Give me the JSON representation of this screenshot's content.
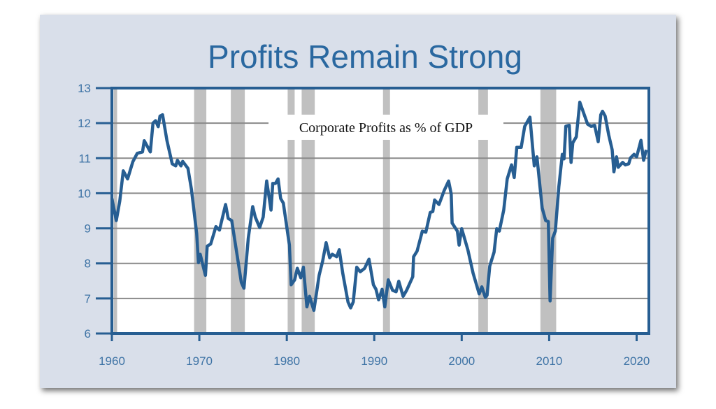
{
  "chart_data": {
    "type": "line",
    "title": "Profits Remain Strong",
    "subtitle": "Corporate Profits as % of GDP",
    "xlabel": "",
    "ylabel": "",
    "xlim": [
      1960,
      2021.4
    ],
    "ylim": [
      6,
      13
    ],
    "grid": true,
    "x_ticks": [
      "1960",
      "1970",
      "1980",
      "1990",
      "2000",
      "2010",
      "2020"
    ],
    "y_ticks": [
      "6",
      "7",
      "8",
      "9",
      "10",
      "11",
      "12",
      "13"
    ],
    "recessions": [
      [
        1960.2,
        1960.6
      ],
      [
        1969.4,
        1970.8
      ],
      [
        1973.6,
        1975.2
      ],
      [
        1980.1,
        1980.9
      ],
      [
        1981.7,
        1983.2
      ],
      [
        1991.0,
        1991.8
      ],
      [
        2001.9,
        2003.0
      ],
      [
        2009.0,
        2010.8
      ]
    ],
    "series": [
      {
        "name": "Corporate Profits as % of GDP",
        "color": "#275e92",
        "points": [
          [
            1960.0,
            9.85
          ],
          [
            1960.5,
            9.22
          ],
          [
            1960.9,
            9.78
          ],
          [
            1961.3,
            10.64
          ],
          [
            1961.8,
            10.41
          ],
          [
            1962.4,
            10.9
          ],
          [
            1962.9,
            11.14
          ],
          [
            1963.5,
            11.18
          ],
          [
            1963.7,
            11.5
          ],
          [
            1964.4,
            11.18
          ],
          [
            1964.7,
            12.0
          ],
          [
            1965.0,
            12.07
          ],
          [
            1965.3,
            11.9
          ],
          [
            1965.5,
            12.2
          ],
          [
            1965.8,
            12.24
          ],
          [
            1966.3,
            11.5
          ],
          [
            1966.9,
            10.84
          ],
          [
            1967.3,
            10.78
          ],
          [
            1967.5,
            10.94
          ],
          [
            1967.9,
            10.78
          ],
          [
            1968.1,
            10.91
          ],
          [
            1968.7,
            10.71
          ],
          [
            1969.1,
            10.11
          ],
          [
            1969.7,
            8.85
          ],
          [
            1969.9,
            8.02
          ],
          [
            1970.1,
            8.26
          ],
          [
            1970.7,
            7.66
          ],
          [
            1970.9,
            8.49
          ],
          [
            1971.3,
            8.55
          ],
          [
            1971.9,
            9.05
          ],
          [
            1972.3,
            8.95
          ],
          [
            1973.0,
            9.68
          ],
          [
            1973.3,
            9.28
          ],
          [
            1973.7,
            9.22
          ],
          [
            1974.3,
            8.26
          ],
          [
            1974.8,
            7.46
          ],
          [
            1975.1,
            7.29
          ],
          [
            1975.6,
            8.72
          ],
          [
            1976.1,
            9.62
          ],
          [
            1976.4,
            9.32
          ],
          [
            1976.9,
            9.02
          ],
          [
            1977.3,
            9.32
          ],
          [
            1977.7,
            10.35
          ],
          [
            1978.2,
            9.52
          ],
          [
            1978.4,
            10.28
          ],
          [
            1978.7,
            10.28
          ],
          [
            1979.0,
            10.41
          ],
          [
            1979.3,
            9.85
          ],
          [
            1979.6,
            9.72
          ],
          [
            1980.3,
            8.52
          ],
          [
            1980.5,
            7.39
          ],
          [
            1980.9,
            7.53
          ],
          [
            1981.2,
            7.86
          ],
          [
            1981.6,
            7.59
          ],
          [
            1981.9,
            7.89
          ],
          [
            1982.3,
            6.76
          ],
          [
            1982.6,
            7.06
          ],
          [
            1983.1,
            6.66
          ],
          [
            1983.7,
            7.66
          ],
          [
            1984.1,
            8.06
          ],
          [
            1984.5,
            8.59
          ],
          [
            1984.9,
            8.16
          ],
          [
            1985.2,
            8.26
          ],
          [
            1985.7,
            8.19
          ],
          [
            1986.0,
            8.39
          ],
          [
            1986.4,
            7.72
          ],
          [
            1987.0,
            6.9
          ],
          [
            1987.3,
            6.73
          ],
          [
            1987.6,
            6.9
          ],
          [
            1988.0,
            7.89
          ],
          [
            1988.4,
            7.76
          ],
          [
            1988.9,
            7.86
          ],
          [
            1989.4,
            8.12
          ],
          [
            1989.9,
            7.39
          ],
          [
            1990.2,
            7.26
          ],
          [
            1990.5,
            6.96
          ],
          [
            1990.9,
            7.26
          ],
          [
            1991.2,
            6.76
          ],
          [
            1991.6,
            7.53
          ],
          [
            1992.1,
            7.23
          ],
          [
            1992.5,
            7.19
          ],
          [
            1992.8,
            7.49
          ],
          [
            1993.3,
            7.06
          ],
          [
            1993.7,
            7.23
          ],
          [
            1994.4,
            7.62
          ],
          [
            1994.5,
            8.19
          ],
          [
            1994.9,
            8.35
          ],
          [
            1995.5,
            8.92
          ],
          [
            1995.9,
            8.89
          ],
          [
            1996.4,
            9.45
          ],
          [
            1996.7,
            9.48
          ],
          [
            1996.9,
            9.81
          ],
          [
            1997.4,
            9.68
          ],
          [
            1998.0,
            10.08
          ],
          [
            1998.5,
            10.35
          ],
          [
            1998.8,
            9.98
          ],
          [
            1998.9,
            9.15
          ],
          [
            1999.5,
            8.92
          ],
          [
            1999.7,
            8.52
          ],
          [
            2000.0,
            8.99
          ],
          [
            2000.7,
            8.39
          ],
          [
            2001.3,
            7.72
          ],
          [
            2002.0,
            7.13
          ],
          [
            2002.3,
            7.33
          ],
          [
            2002.7,
            7.03
          ],
          [
            2002.9,
            7.09
          ],
          [
            2003.2,
            7.92
          ],
          [
            2003.7,
            8.32
          ],
          [
            2004.0,
            8.99
          ],
          [
            2004.3,
            8.92
          ],
          [
            2004.8,
            9.52
          ],
          [
            2005.2,
            10.41
          ],
          [
            2005.7,
            10.81
          ],
          [
            2006.0,
            10.45
          ],
          [
            2006.3,
            11.31
          ],
          [
            2006.8,
            11.31
          ],
          [
            2007.2,
            11.91
          ],
          [
            2007.8,
            12.17
          ],
          [
            2008.3,
            10.78
          ],
          [
            2008.6,
            11.04
          ],
          [
            2009.2,
            9.58
          ],
          [
            2009.6,
            9.22
          ],
          [
            2009.9,
            9.19
          ],
          [
            2010.1,
            6.93
          ],
          [
            2010.4,
            8.72
          ],
          [
            2010.7,
            8.92
          ],
          [
            2011.1,
            10.18
          ],
          [
            2011.5,
            11.11
          ],
          [
            2011.7,
            10.98
          ],
          [
            2011.9,
            11.91
          ],
          [
            2012.3,
            11.94
          ],
          [
            2012.5,
            10.88
          ],
          [
            2012.7,
            11.44
          ],
          [
            2013.1,
            11.61
          ],
          [
            2013.5,
            12.6
          ],
          [
            2014.4,
            11.97
          ],
          [
            2014.8,
            11.91
          ],
          [
            2015.2,
            11.94
          ],
          [
            2015.6,
            11.47
          ],
          [
            2015.9,
            12.24
          ],
          [
            2016.1,
            12.34
          ],
          [
            2016.4,
            12.2
          ],
          [
            2016.8,
            11.67
          ],
          [
            2017.2,
            11.24
          ],
          [
            2017.4,
            10.61
          ],
          [
            2017.7,
            11.04
          ],
          [
            2017.9,
            10.74
          ],
          [
            2018.4,
            10.88
          ],
          [
            2018.7,
            10.81
          ],
          [
            2019.1,
            10.84
          ],
          [
            2019.3,
            11.01
          ],
          [
            2019.7,
            11.11
          ],
          [
            2020.0,
            11.04
          ],
          [
            2020.5,
            11.51
          ],
          [
            2020.8,
            10.94
          ],
          [
            2021.1,
            11.24
          ]
        ]
      }
    ]
  }
}
